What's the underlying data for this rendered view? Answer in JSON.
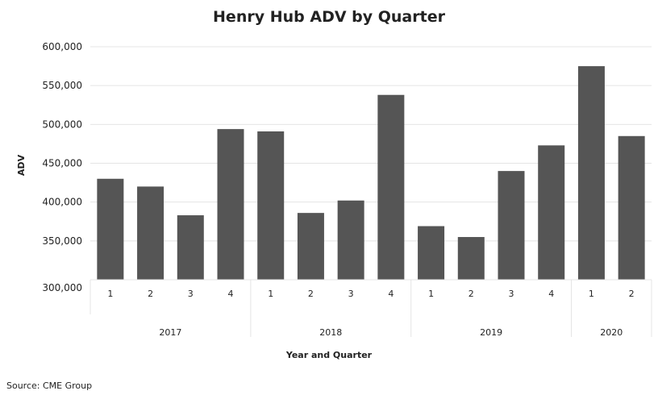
{
  "chart_data": {
    "type": "bar",
    "title": "Henry Hub ADV by Quarter",
    "xlabel": "Year and Quarter",
    "ylabel": "ADV",
    "ylim": [
      300000,
      600000
    ],
    "yticks": [
      "300,000",
      "350,000",
      "400,000",
      "450,000",
      "500,000",
      "550,000",
      "600,000"
    ],
    "ytick_values": [
      300000,
      350000,
      400000,
      450000,
      500000,
      550000,
      600000
    ],
    "grid": true,
    "bar_color": "#555555",
    "groups": [
      {
        "label": "2017",
        "categories": [
          "1",
          "2",
          "3",
          "4"
        ],
        "values": [
          430000,
          420000,
          383000,
          494000
        ]
      },
      {
        "label": "2018",
        "categories": [
          "1",
          "2",
          "3",
          "4"
        ],
        "values": [
          491000,
          386000,
          402000,
          538000
        ]
      },
      {
        "label": "2019",
        "categories": [
          "1",
          "2",
          "3",
          "4"
        ],
        "values": [
          369000,
          355000,
          440000,
          473000
        ]
      },
      {
        "label": "2020",
        "categories": [
          "1",
          "2"
        ],
        "values": [
          575000,
          485000
        ]
      }
    ],
    "source": "Source: CME Group"
  }
}
